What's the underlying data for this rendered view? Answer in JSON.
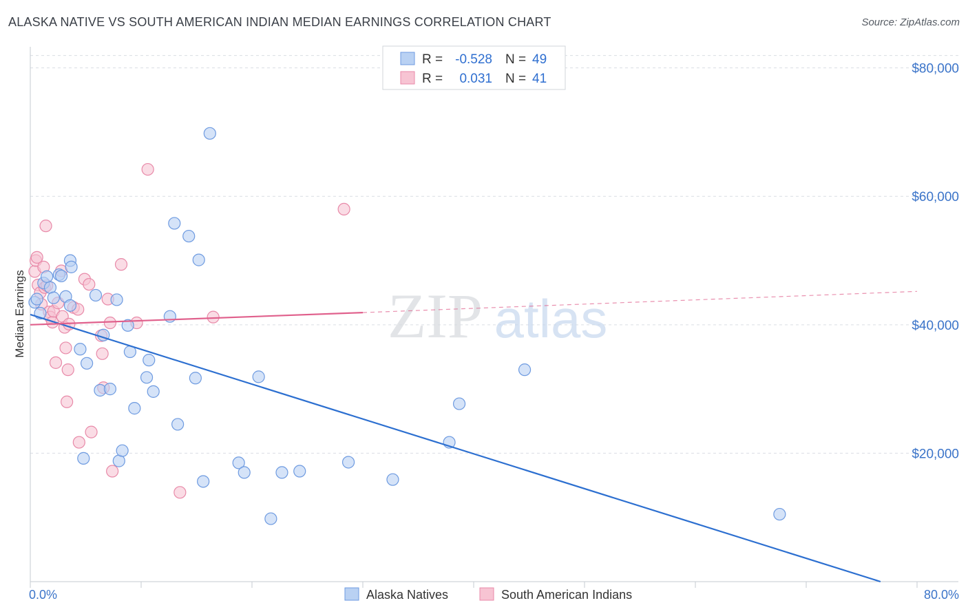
{
  "title": "ALASKA NATIVE VS SOUTH AMERICAN INDIAN MEDIAN EARNINGS CORRELATION CHART",
  "source": "Source: ZipAtlas.com",
  "colors": {
    "blue_fill": "#b9d1f3",
    "blue_stroke": "#6d9ae0",
    "blue_line": "#2c6fd0",
    "pink_fill": "#f7c4d3",
    "pink_stroke": "#e889a8",
    "pink_line": "#e0608c",
    "grid": "#d9dde3",
    "tick_label": "#3b74c9"
  },
  "legend": {
    "rows": [
      {
        "r_label": "R =",
        "r_value": "-0.528",
        "n_label": "N =",
        "n_value": "49"
      },
      {
        "r_label": "R =",
        "r_value": "0.031",
        "n_label": "N =",
        "n_value": "41"
      }
    ]
  },
  "watermark": {
    "zip": "ZIP",
    "atlas": "atlas"
  },
  "chart_data": {
    "type": "scatter",
    "title": "ALASKA NATIVE VS SOUTH AMERICAN INDIAN MEDIAN EARNINGS CORRELATION CHART",
    "xlabel": "",
    "ylabel": "Median Earnings",
    "xlim": [
      0,
      80
    ],
    "ylim": [
      0,
      82000
    ],
    "x_tick_labels": [
      "0.0%",
      "80.0%"
    ],
    "y_ticks": [
      20000,
      40000,
      60000,
      80000
    ],
    "y_tick_labels": [
      "$20,000",
      "$40,000",
      "$60,000",
      "$80,000"
    ],
    "grid": "horizontal dashed",
    "legend_position": "top-center",
    "series": [
      {
        "name": "Alaska Natives",
        "R": -0.528,
        "N": 49,
        "trend": {
          "x": [
            0,
            76.7
          ],
          "y": [
            41600,
            0
          ]
        },
        "points": [
          [
            0.4,
            43500
          ],
          [
            0.6,
            44000
          ],
          [
            0.9,
            41800
          ],
          [
            1.2,
            46500
          ],
          [
            1.5,
            47500
          ],
          [
            1.8,
            45800
          ],
          [
            2.1,
            44200
          ],
          [
            2.6,
            47800
          ],
          [
            2.8,
            47600
          ],
          [
            3.2,
            44400
          ],
          [
            3.6,
            43000
          ],
          [
            3.6,
            50000
          ],
          [
            3.7,
            49000
          ],
          [
            4.5,
            36200
          ],
          [
            4.8,
            19200
          ],
          [
            5.1,
            34000
          ],
          [
            5.9,
            44600
          ],
          [
            6.3,
            29800
          ],
          [
            6.6,
            38400
          ],
          [
            7.2,
            30000
          ],
          [
            7.8,
            43900
          ],
          [
            8.0,
            18800
          ],
          [
            8.3,
            20400
          ],
          [
            8.8,
            39900
          ],
          [
            9.0,
            35800
          ],
          [
            9.4,
            27000
          ],
          [
            10.5,
            31800
          ],
          [
            10.7,
            34500
          ],
          [
            11.1,
            29600
          ],
          [
            12.6,
            41300
          ],
          [
            13.0,
            55800
          ],
          [
            13.3,
            24500
          ],
          [
            14.3,
            53800
          ],
          [
            14.9,
            31700
          ],
          [
            15.2,
            50100
          ],
          [
            15.6,
            15600
          ],
          [
            16.2,
            69800
          ],
          [
            18.8,
            18500
          ],
          [
            19.3,
            17000
          ],
          [
            20.6,
            31900
          ],
          [
            21.7,
            9800
          ],
          [
            22.7,
            17000
          ],
          [
            24.3,
            17200
          ],
          [
            28.7,
            18600
          ],
          [
            32.7,
            15900
          ],
          [
            37.8,
            21700
          ],
          [
            38.7,
            27700
          ],
          [
            44.6,
            33000
          ],
          [
            67.6,
            10500
          ]
        ]
      },
      {
        "name": "South American Indians",
        "R": 0.031,
        "N": 41,
        "trend": {
          "x": [
            0,
            30
          ],
          "y": [
            40000,
            41900
          ]
        },
        "trend_dashed": {
          "x": [
            30,
            80
          ],
          "y": [
            41900,
            45200
          ]
        },
        "points": [
          [
            0.4,
            48300
          ],
          [
            0.5,
            50000
          ],
          [
            0.6,
            50500
          ],
          [
            0.7,
            46200
          ],
          [
            0.9,
            45000
          ],
          [
            1.0,
            43200
          ],
          [
            1.2,
            49000
          ],
          [
            1.3,
            45800
          ],
          [
            1.4,
            55400
          ],
          [
            1.5,
            46100
          ],
          [
            1.7,
            42000
          ],
          [
            1.8,
            41200
          ],
          [
            2.0,
            40400
          ],
          [
            2.1,
            42100
          ],
          [
            2.3,
            34100
          ],
          [
            2.5,
            43400
          ],
          [
            2.8,
            48400
          ],
          [
            2.9,
            41300
          ],
          [
            3.1,
            39600
          ],
          [
            3.2,
            36400
          ],
          [
            3.3,
            28000
          ],
          [
            3.4,
            33000
          ],
          [
            3.5,
            40100
          ],
          [
            3.9,
            42700
          ],
          [
            4.3,
            42400
          ],
          [
            4.4,
            21700
          ],
          [
            4.9,
            47100
          ],
          [
            5.3,
            46300
          ],
          [
            5.5,
            23300
          ],
          [
            6.4,
            38300
          ],
          [
            6.5,
            35500
          ],
          [
            6.6,
            30200
          ],
          [
            7.0,
            44000
          ],
          [
            7.2,
            40300
          ],
          [
            7.4,
            17200
          ],
          [
            8.2,
            49400
          ],
          [
            9.6,
            40300
          ],
          [
            10.6,
            64200
          ],
          [
            13.5,
            13900
          ],
          [
            16.5,
            41200
          ],
          [
            28.3,
            58000
          ]
        ]
      }
    ]
  }
}
